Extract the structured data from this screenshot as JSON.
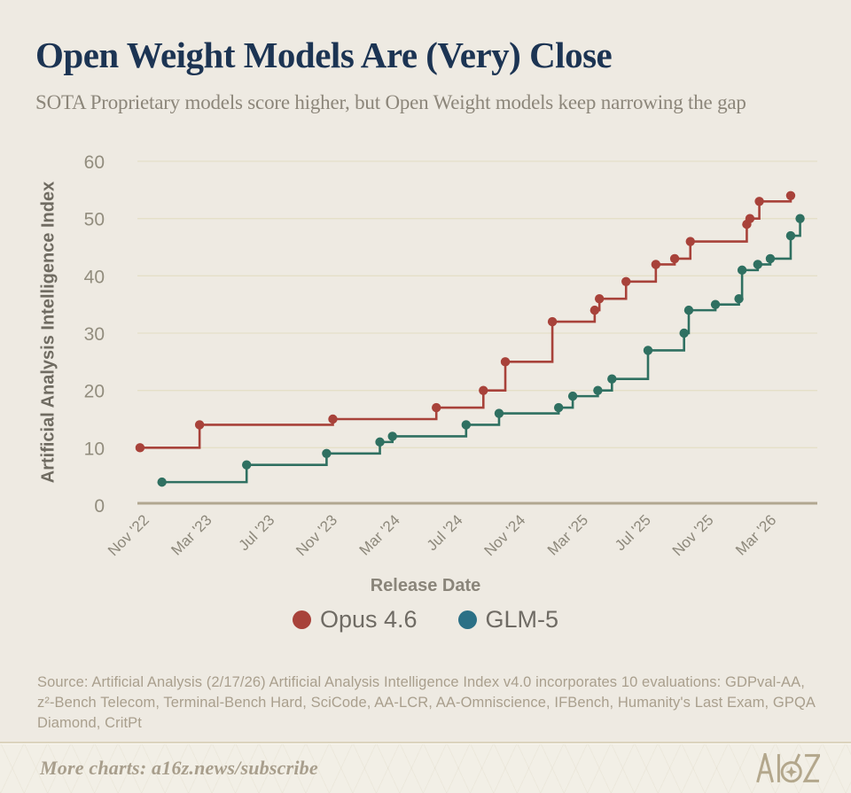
{
  "header": {
    "title": "Open Weight Models Are (Very) Close",
    "subtitle": "SOTA Proprietary models score higher, but Open Weight models keep narrowing the gap"
  },
  "axes": {
    "y_title": "Artificial Analysis Intelligence Index",
    "x_title": "Release Date"
  },
  "legend": [
    {
      "label": "Opus 4.6",
      "color": "#A8423A"
    },
    {
      "label": "GLM-5",
      "color": "#2B7086"
    }
  ],
  "source": {
    "lines": [
      "Source: Artificial Analysis (2/17/26) Artificial Analysis Intelligence Index v4.0 incorporates 10 evaluations: GDPval-AA,",
      "z²-Bench Telecom, Terminal-Bench Hard, SciCode, AA-LCR, AA-Omniscience, IFBench, Humanity's Last Exam, GPQA",
      "Diamond, CritPt"
    ]
  },
  "footer": {
    "more_charts": "More charts: a16z.news/subscribe",
    "logo_text": "A16Z"
  },
  "chart_data": {
    "type": "line",
    "line_style": "step-after",
    "title": "Open Weight Models Are (Very) Close",
    "xlabel": "Release Date",
    "ylabel": "Artificial Analysis Intelligence Index",
    "ylim": [
      0,
      60
    ],
    "y_ticks": [
      0,
      10,
      20,
      30,
      40,
      50,
      60
    ],
    "grid": "horizontal-only",
    "legend_position": "bottom-center",
    "x_unit": "months since Nov 2022 (estimated from axis)",
    "points_format": "[months_since_Nov_2022, index_value]",
    "x_ticks": [
      {
        "label": "Nov '22",
        "m": 0
      },
      {
        "label": "Mar '23",
        "m": 4
      },
      {
        "label": "Jul '23",
        "m": 8
      },
      {
        "label": "Nov '23",
        "m": 12
      },
      {
        "label": "Mar '24",
        "m": 16
      },
      {
        "label": "Jul '24",
        "m": 20
      },
      {
        "label": "Nov '24",
        "m": 24
      },
      {
        "label": "Mar '25",
        "m": 28
      },
      {
        "label": "Jul '25",
        "m": 32
      },
      {
        "label": "Nov '25",
        "m": 36
      },
      {
        "label": "Mar '26",
        "m": 40
      }
    ],
    "series": [
      {
        "name": "Opus 4.6",
        "color": "#A8423A",
        "points": [
          [
            -0.4,
            10
          ],
          [
            3.4,
            14
          ],
          [
            11.9,
            15
          ],
          [
            18.5,
            17
          ],
          [
            21.5,
            20
          ],
          [
            22.9,
            25
          ],
          [
            25.9,
            32
          ],
          [
            28.6,
            34
          ],
          [
            28.9,
            36
          ],
          [
            30.6,
            39
          ],
          [
            32.5,
            42
          ],
          [
            33.7,
            43
          ],
          [
            34.7,
            46
          ],
          [
            38.3,
            49
          ],
          [
            38.5,
            50
          ],
          [
            39.1,
            53
          ],
          [
            41.1,
            54
          ]
        ]
      },
      {
        "name": "GLM-5",
        "color": "#2F7061",
        "points": [
          [
            1.0,
            4
          ],
          [
            6.4,
            7
          ],
          [
            11.5,
            9
          ],
          [
            14.9,
            11
          ],
          [
            15.7,
            12
          ],
          [
            20.4,
            14
          ],
          [
            22.5,
            16
          ],
          [
            26.3,
            17
          ],
          [
            27.2,
            19
          ],
          [
            28.8,
            20
          ],
          [
            29.7,
            22
          ],
          [
            32.0,
            27
          ],
          [
            34.3,
            30
          ],
          [
            34.6,
            34
          ],
          [
            36.3,
            35
          ],
          [
            37.8,
            36
          ],
          [
            38.0,
            41
          ],
          [
            39.0,
            42
          ],
          [
            39.8,
            43
          ],
          [
            41.1,
            47
          ],
          [
            41.7,
            50
          ]
        ]
      }
    ]
  }
}
